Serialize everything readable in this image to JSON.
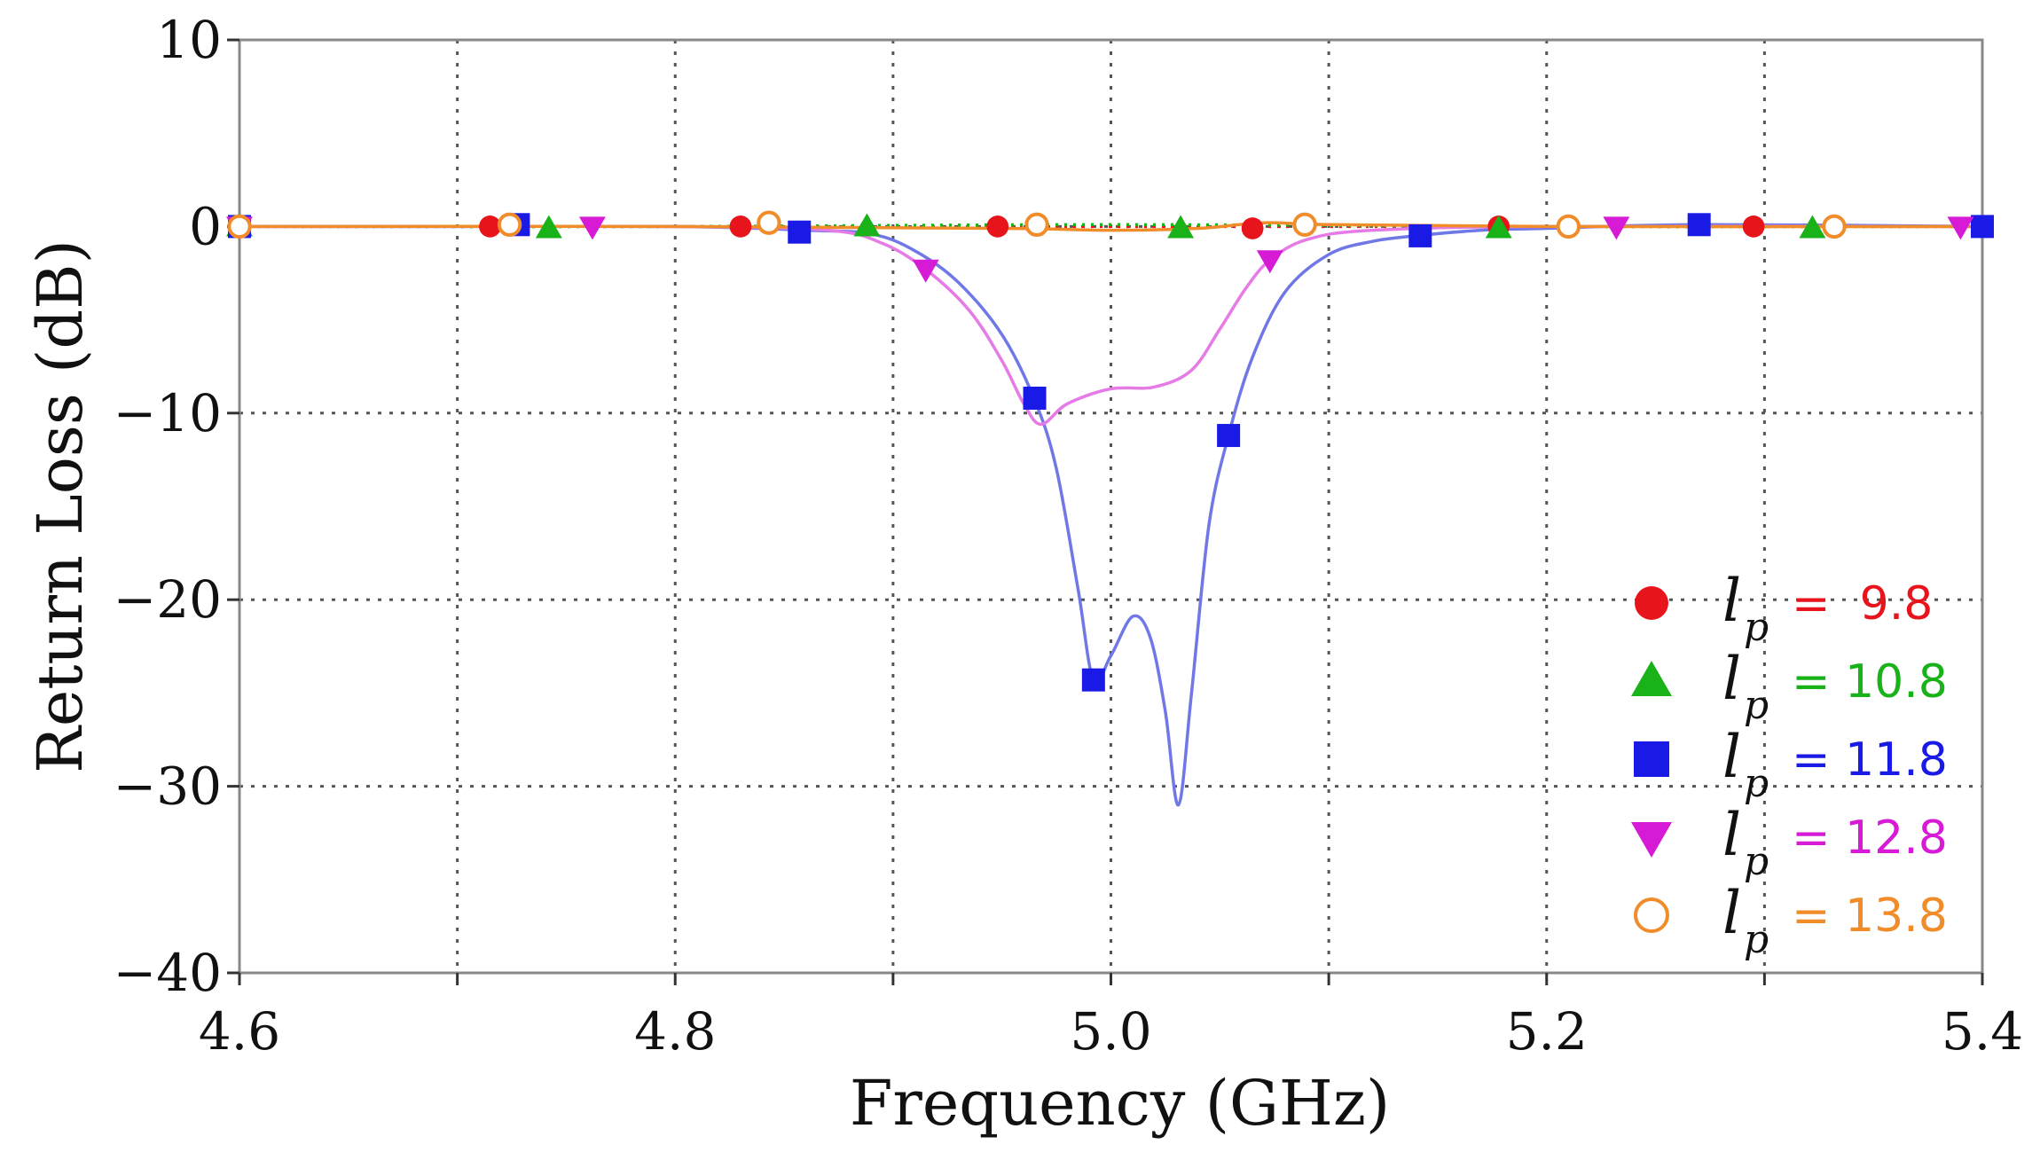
{
  "chart_data": {
    "type": "line",
    "title": "",
    "xlabel": "Frequency (GHz)",
    "ylabel": "Return Loss (dB)",
    "xlim": [
      4.6,
      5.4
    ],
    "ylim": [
      -40,
      10
    ],
    "xticks": [
      4.6,
      4.8,
      5.0,
      5.2,
      5.4
    ],
    "xtick_labels": [
      "4.6",
      "4.8",
      "5.0",
      "5.2",
      "5.4"
    ],
    "xgrid": [
      4.6,
      4.7,
      4.8,
      4.9,
      5.0,
      5.1,
      5.2,
      5.3,
      5.4
    ],
    "yticks": [
      10,
      0,
      -10,
      -20,
      -30,
      -40
    ],
    "ytick_labels": [
      "10",
      "0",
      "−10",
      "−20",
      "−30",
      "−40"
    ],
    "grid": true,
    "legend_position": "bottom-right",
    "legend_symbol": "l",
    "legend_subscript": "p",
    "series": [
      {
        "name": "lp = 9.8",
        "value_label": "=  9.8",
        "color": "#e8141c",
        "marker": "circle-filled",
        "line": [
          [
            4.6,
            0.0
          ],
          [
            4.8,
            0.0
          ],
          [
            5.0,
            0.0
          ],
          [
            5.2,
            0.0
          ],
          [
            5.4,
            0.0
          ]
        ],
        "markers": [
          [
            4.6,
            0.0
          ],
          [
            4.715,
            0.0
          ],
          [
            4.83,
            0.0
          ],
          [
            4.948,
            0.0
          ],
          [
            5.065,
            -0.1
          ],
          [
            5.178,
            0.0
          ],
          [
            5.295,
            0.0
          ]
        ]
      },
      {
        "name": "lp = 10.8",
        "value_label": "= 10.8",
        "color": "#19b219",
        "marker": "triangle-up",
        "line": [
          [
            4.6,
            0.0
          ],
          [
            4.8,
            0.0
          ],
          [
            5.0,
            0.1
          ],
          [
            5.2,
            0.0
          ],
          [
            5.4,
            0.0
          ]
        ],
        "markers": [
          [
            4.6,
            0.0
          ],
          [
            4.742,
            -0.1
          ],
          [
            4.888,
            0.0
          ],
          [
            5.032,
            -0.1
          ],
          [
            5.178,
            -0.1
          ],
          [
            5.322,
            -0.1
          ]
        ]
      },
      {
        "name": "lp = 11.8",
        "value_label": "= 11.8",
        "color": "#1a1ae6",
        "line_color": "#6f78e6",
        "marker": "square-filled",
        "line": [
          [
            4.6,
            0.0
          ],
          [
            4.7,
            0.0
          ],
          [
            4.8,
            0.0
          ],
          [
            4.86,
            -0.2
          ],
          [
            4.89,
            -0.4
          ],
          [
            4.91,
            -1.3
          ],
          [
            4.93,
            -3.0
          ],
          [
            4.95,
            -5.8
          ],
          [
            4.965,
            -9.3
          ],
          [
            4.975,
            -13.0
          ],
          [
            4.985,
            -19.5
          ],
          [
            4.992,
            -24.3
          ],
          [
            5.0,
            -23.0
          ],
          [
            5.01,
            -20.9
          ],
          [
            5.018,
            -22.0
          ],
          [
            5.025,
            -26.0
          ],
          [
            5.031,
            -31.0
          ],
          [
            5.037,
            -25.0
          ],
          [
            5.045,
            -16.0
          ],
          [
            5.054,
            -11.2
          ],
          [
            5.065,
            -7.0
          ],
          [
            5.08,
            -3.5
          ],
          [
            5.1,
            -1.5
          ],
          [
            5.12,
            -0.8
          ],
          [
            5.14,
            -0.5
          ],
          [
            5.17,
            -0.2
          ],
          [
            5.2,
            -0.1
          ],
          [
            5.27,
            0.1
          ],
          [
            5.4,
            0.0
          ]
        ],
        "markers": [
          [
            4.6,
            0.0
          ],
          [
            4.728,
            0.1
          ],
          [
            4.857,
            -0.3
          ],
          [
            4.965,
            -9.2
          ],
          [
            4.992,
            -24.3
          ],
          [
            5.054,
            -11.2
          ],
          [
            5.142,
            -0.5
          ],
          [
            5.27,
            0.1
          ],
          [
            5.4,
            0.0
          ]
        ]
      },
      {
        "name": "lp = 12.8",
        "value_label": "= 12.8",
        "color": "#d61ad6",
        "line_color": "#e67ae6",
        "marker": "triangle-down",
        "line": [
          [
            4.6,
            0.0
          ],
          [
            4.7,
            0.0
          ],
          [
            4.8,
            0.0
          ],
          [
            4.87,
            -0.2
          ],
          [
            4.895,
            -0.9
          ],
          [
            4.915,
            -2.3
          ],
          [
            4.935,
            -4.5
          ],
          [
            4.95,
            -7.2
          ],
          [
            4.96,
            -9.5
          ],
          [
            4.968,
            -10.6
          ],
          [
            4.98,
            -9.5
          ],
          [
            5.0,
            -8.7
          ],
          [
            5.02,
            -8.6
          ],
          [
            5.037,
            -7.7
          ],
          [
            5.05,
            -5.5
          ],
          [
            5.062,
            -3.3
          ],
          [
            5.073,
            -1.8
          ],
          [
            5.09,
            -0.7
          ],
          [
            5.12,
            -0.2
          ],
          [
            5.2,
            0.0
          ],
          [
            5.4,
            0.0
          ]
        ],
        "markers": [
          [
            4.6,
            0.0
          ],
          [
            4.762,
            0.0
          ],
          [
            4.915,
            -2.3
          ],
          [
            5.073,
            -1.8
          ],
          [
            5.232,
            0.0
          ],
          [
            5.39,
            0.0
          ]
        ]
      },
      {
        "name": "lp = 13.8",
        "value_label": "= 13.8",
        "color": "#f08c2a",
        "marker": "circle-open",
        "line": [
          [
            4.6,
            0.0
          ],
          [
            4.8,
            0.0
          ],
          [
            4.95,
            -0.1
          ],
          [
            5.0,
            -0.2
          ],
          [
            5.04,
            -0.1
          ],
          [
            5.07,
            0.2
          ],
          [
            5.1,
            0.1
          ],
          [
            5.2,
            0.0
          ],
          [
            5.4,
            0.0
          ]
        ],
        "markers": [
          [
            4.6,
            0.0
          ],
          [
            4.724,
            0.1
          ],
          [
            4.843,
            0.2
          ],
          [
            4.966,
            0.1
          ],
          [
            5.089,
            0.1
          ],
          [
            5.21,
            0.0
          ],
          [
            5.332,
            0.0
          ]
        ]
      }
    ]
  }
}
